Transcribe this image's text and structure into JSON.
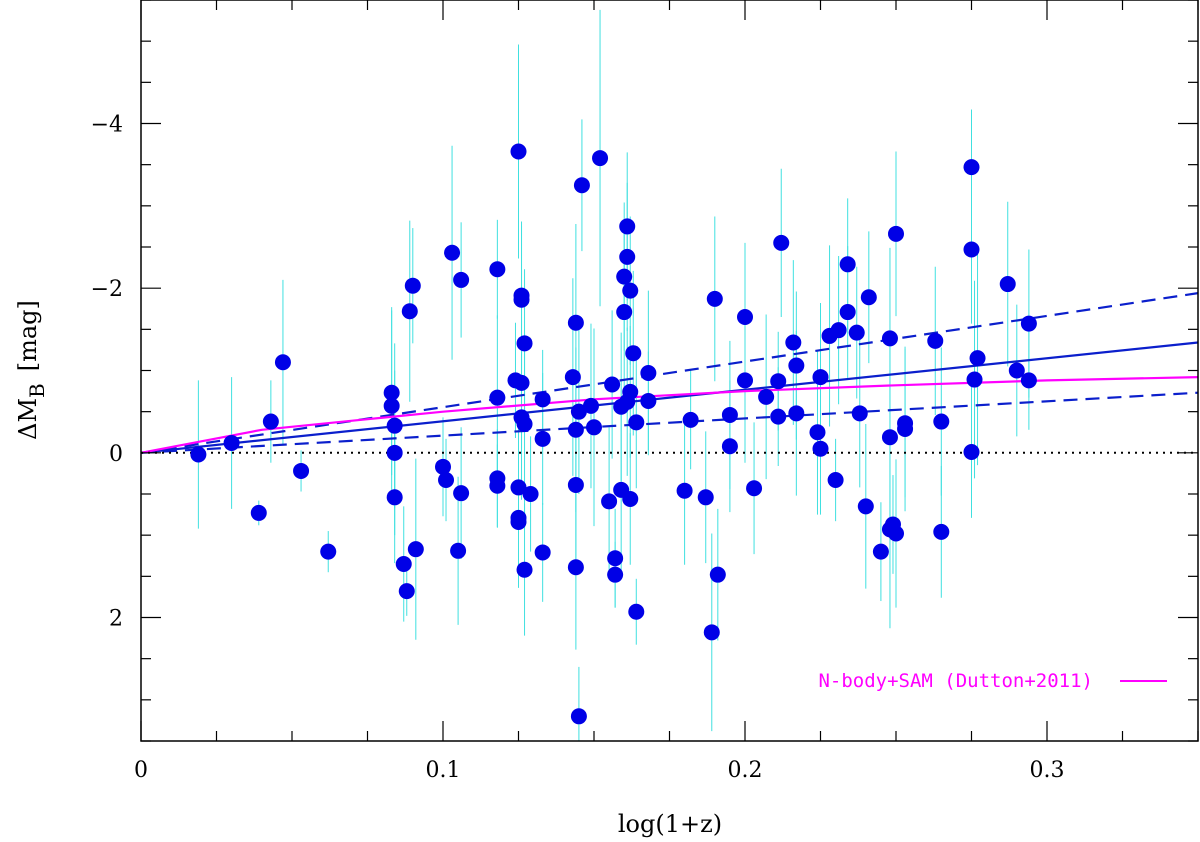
{
  "chart_data": {
    "type": "scatter",
    "title": "",
    "xlabel": "log(1+z)",
    "ylabel": {
      "main": "ΔM",
      "sub": "B",
      "unit": "[mag]"
    },
    "xlim": [
      0,
      0.35
    ],
    "ylim": [
      3.5,
      -5.5
    ],
    "x_ticks": [
      {
        "value": 0,
        "label": "0"
      },
      {
        "value": 0.1,
        "label": "0.1"
      },
      {
        "value": 0.2,
        "label": "0.2"
      },
      {
        "value": 0.3,
        "label": "0.3"
      }
    ],
    "x_minor_step": 0.025,
    "y_ticks": [
      {
        "value": -4,
        "label": "−4"
      },
      {
        "value": -2,
        "label": "−2"
      },
      {
        "value": 0,
        "label": "0"
      },
      {
        "value": 2,
        "label": "2"
      }
    ],
    "y_minor_step": 0.5,
    "colors": {
      "points": "#0000e6",
      "errorbars": "#40e0e0",
      "fit": "#0b1fcc",
      "model": "#ff00ff",
      "zero": "#000000"
    },
    "points": [
      {
        "x": 0.019,
        "y": 0.02,
        "err": 0.9
      },
      {
        "x": 0.03,
        "y": -0.12,
        "err": 0.8
      },
      {
        "x": 0.039,
        "y": 0.73,
        "err": 0.15
      },
      {
        "x": 0.043,
        "y": -0.38,
        "err": 0.5
      },
      {
        "x": 0.047,
        "y": -1.1,
        "err": 1.0
      },
      {
        "x": 0.053,
        "y": 0.22,
        "err": 0.25
      },
      {
        "x": 0.062,
        "y": 1.2,
        "err": 0.25
      },
      {
        "x": 0.083,
        "y": -0.57,
        "err": 1.2
      },
      {
        "x": 0.083,
        "y": -0.73,
        "err": 1.0
      },
      {
        "x": 0.084,
        "y": -0.33,
        "err": 1.0
      },
      {
        "x": 0.084,
        "y": 0.0,
        "err": 1.0
      },
      {
        "x": 0.084,
        "y": 0.54,
        "err": 0.8
      },
      {
        "x": 0.087,
        "y": 1.35,
        "err": 0.7
      },
      {
        "x": 0.088,
        "y": 1.68,
        "err": 0.3
      },
      {
        "x": 0.089,
        "y": -1.72,
        "err": 1.1
      },
      {
        "x": 0.09,
        "y": -2.03,
        "err": 0.7
      },
      {
        "x": 0.091,
        "y": 1.17,
        "err": 1.1
      },
      {
        "x": 0.1,
        "y": 0.17,
        "err": 0.6
      },
      {
        "x": 0.101,
        "y": 0.33,
        "err": 0.5
      },
      {
        "x": 0.103,
        "y": -2.43,
        "err": 1.3
      },
      {
        "x": 0.105,
        "y": 1.19,
        "err": 0.9
      },
      {
        "x": 0.106,
        "y": -2.1,
        "err": 0.7
      },
      {
        "x": 0.106,
        "y": 0.49,
        "err": 0.8
      },
      {
        "x": 0.118,
        "y": -2.23,
        "err": 0.6
      },
      {
        "x": 0.118,
        "y": -0.67,
        "err": 1.0
      },
      {
        "x": 0.118,
        "y": 0.31,
        "err": 0.6
      },
      {
        "x": 0.118,
        "y": 0.4,
        "err": 0.5
      },
      {
        "x": 0.124,
        "y": -0.88,
        "err": 0.7
      },
      {
        "x": 0.125,
        "y": -3.66,
        "err": 1.3
      },
      {
        "x": 0.125,
        "y": 0.42,
        "err": 0.8
      },
      {
        "x": 0.125,
        "y": 0.79,
        "err": 0.8
      },
      {
        "x": 0.125,
        "y": 0.84,
        "err": 0.8
      },
      {
        "x": 0.126,
        "y": -1.91,
        "err": 0.9
      },
      {
        "x": 0.126,
        "y": -1.86,
        "err": 0.9
      },
      {
        "x": 0.126,
        "y": -0.85,
        "err": 0.8
      },
      {
        "x": 0.126,
        "y": -0.43,
        "err": 1.0
      },
      {
        "x": 0.127,
        "y": -1.33,
        "err": 0.9
      },
      {
        "x": 0.127,
        "y": -0.35,
        "err": 1.1
      },
      {
        "x": 0.127,
        "y": 1.42,
        "err": 0.8
      },
      {
        "x": 0.129,
        "y": 0.5,
        "err": 0.7
      },
      {
        "x": 0.133,
        "y": -0.65,
        "err": 0.6
      },
      {
        "x": 0.133,
        "y": -0.17,
        "err": 0.8
      },
      {
        "x": 0.133,
        "y": 1.21,
        "err": 0.6
      },
      {
        "x": 0.143,
        "y": -0.92,
        "err": 1.2
      },
      {
        "x": 0.144,
        "y": -1.58,
        "err": 1.2
      },
      {
        "x": 0.144,
        "y": -0.28,
        "err": 1.0
      },
      {
        "x": 0.144,
        "y": 0.39,
        "err": 0.9
      },
      {
        "x": 0.144,
        "y": 1.39,
        "err": 1.0
      },
      {
        "x": 0.145,
        "y": -0.5,
        "err": 1.0
      },
      {
        "x": 0.145,
        "y": 3.2,
        "err": 0.6
      },
      {
        "x": 0.146,
        "y": -3.25,
        "err": 0.8
      },
      {
        "x": 0.149,
        "y": -0.57,
        "err": 1.0
      },
      {
        "x": 0.15,
        "y": -0.31,
        "err": 1.2
      },
      {
        "x": 0.152,
        "y": -3.58,
        "err": 1.8
      },
      {
        "x": 0.155,
        "y": 0.59,
        "err": 0.9
      },
      {
        "x": 0.156,
        "y": -0.83,
        "err": 0.9
      },
      {
        "x": 0.157,
        "y": 1.28,
        "err": 0.6
      },
      {
        "x": 0.157,
        "y": 1.48,
        "err": 0.4
      },
      {
        "x": 0.159,
        "y": -0.56,
        "err": 0.9
      },
      {
        "x": 0.159,
        "y": 0.45,
        "err": 1.0
      },
      {
        "x": 0.16,
        "y": -2.14,
        "err": 0.9
      },
      {
        "x": 0.16,
        "y": -1.71,
        "err": 1.0
      },
      {
        "x": 0.161,
        "y": -2.38,
        "err": 0.9
      },
      {
        "x": 0.161,
        "y": -2.75,
        "err": 0.9
      },
      {
        "x": 0.161,
        "y": -0.62,
        "err": 0.9
      },
      {
        "x": 0.162,
        "y": -1.97,
        "err": 0.9
      },
      {
        "x": 0.162,
        "y": -0.74,
        "err": 0.8
      },
      {
        "x": 0.162,
        "y": 0.56,
        "err": 0.8
      },
      {
        "x": 0.163,
        "y": -1.21,
        "err": 1.0
      },
      {
        "x": 0.164,
        "y": -0.37,
        "err": 0.8
      },
      {
        "x": 0.164,
        "y": 1.93,
        "err": 0.4
      },
      {
        "x": 0.168,
        "y": -0.63,
        "err": 0.6
      },
      {
        "x": 0.168,
        "y": -0.97,
        "err": 1.0
      },
      {
        "x": 0.18,
        "y": 0.46,
        "err": 0.9
      },
      {
        "x": 0.182,
        "y": -0.4,
        "err": 0.6
      },
      {
        "x": 0.187,
        "y": 0.54,
        "err": 0.8
      },
      {
        "x": 0.189,
        "y": 2.18,
        "err": 1.2
      },
      {
        "x": 0.19,
        "y": -1.87,
        "err": 1.0
      },
      {
        "x": 0.191,
        "y": 1.48,
        "err": 0.8
      },
      {
        "x": 0.195,
        "y": -0.46,
        "err": 0.9
      },
      {
        "x": 0.195,
        "y": -0.08,
        "err": 0.8
      },
      {
        "x": 0.2,
        "y": -0.88,
        "err": 1.0
      },
      {
        "x": 0.2,
        "y": -1.65,
        "err": 0.9
      },
      {
        "x": 0.203,
        "y": 0.43,
        "err": 0.8
      },
      {
        "x": 0.207,
        "y": -0.68,
        "err": 1.0
      },
      {
        "x": 0.211,
        "y": -0.44,
        "err": 0.6
      },
      {
        "x": 0.211,
        "y": -0.87,
        "err": 0.6
      },
      {
        "x": 0.212,
        "y": -2.55,
        "err": 0.9
      },
      {
        "x": 0.216,
        "y": -1.34,
        "err": 1.0
      },
      {
        "x": 0.217,
        "y": -1.06,
        "err": 0.9
      },
      {
        "x": 0.217,
        "y": -0.48,
        "err": 1.0
      },
      {
        "x": 0.224,
        "y": -0.25,
        "err": 1.0
      },
      {
        "x": 0.225,
        "y": -0.92,
        "err": 0.9
      },
      {
        "x": 0.225,
        "y": -0.05,
        "err": 0.8
      },
      {
        "x": 0.228,
        "y": -1.42,
        "err": 1.1
      },
      {
        "x": 0.23,
        "y": 0.33,
        "err": 0.5
      },
      {
        "x": 0.231,
        "y": -1.49,
        "err": 0.9
      },
      {
        "x": 0.234,
        "y": -2.29,
        "err": 0.8
      },
      {
        "x": 0.234,
        "y": -1.71,
        "err": 0.8
      },
      {
        "x": 0.237,
        "y": -1.46,
        "err": 0.8
      },
      {
        "x": 0.238,
        "y": -0.48,
        "err": 0.9
      },
      {
        "x": 0.24,
        "y": 0.65,
        "err": 1.0
      },
      {
        "x": 0.241,
        "y": -1.89,
        "err": 0.8
      },
      {
        "x": 0.245,
        "y": 1.2,
        "err": 0.6
      },
      {
        "x": 0.248,
        "y": -1.39,
        "err": 1.1
      },
      {
        "x": 0.248,
        "y": -0.19,
        "err": 1.2
      },
      {
        "x": 0.248,
        "y": 0.93,
        "err": 1.2
      },
      {
        "x": 0.249,
        "y": 0.87,
        "err": 0.6
      },
      {
        "x": 0.25,
        "y": -2.66,
        "err": 1.0
      },
      {
        "x": 0.25,
        "y": 0.98,
        "err": 0.9
      },
      {
        "x": 0.253,
        "y": -0.29,
        "err": 1.0
      },
      {
        "x": 0.253,
        "y": -0.36,
        "err": 0.9
      },
      {
        "x": 0.263,
        "y": -1.36,
        "err": 0.9
      },
      {
        "x": 0.265,
        "y": -0.38,
        "err": 0.9
      },
      {
        "x": 0.265,
        "y": 0.96,
        "err": 0.8
      },
      {
        "x": 0.275,
        "y": -3.47,
        "err": 0.7
      },
      {
        "x": 0.275,
        "y": -2.47,
        "err": 0.9
      },
      {
        "x": 0.275,
        "y": -0.01,
        "err": 0.8
      },
      {
        "x": 0.276,
        "y": -0.89,
        "err": 1.2
      },
      {
        "x": 0.277,
        "y": -1.15,
        "err": 1.3
      },
      {
        "x": 0.287,
        "y": -2.05,
        "err": 1.0
      },
      {
        "x": 0.29,
        "y": -1.0,
        "err": 0.8
      },
      {
        "x": 0.294,
        "y": -1.57,
        "err": 0.9
      },
      {
        "x": 0.294,
        "y": -0.88,
        "err": 0.6
      }
    ],
    "lines": [
      {
        "name": "fit",
        "style": "solid",
        "color": "#0b1fcc",
        "x": [
          0,
          0.35
        ],
        "y": [
          0,
          -1.34
        ]
      },
      {
        "name": "fit-upper",
        "style": "dashed",
        "color": "#0b1fcc",
        "x": [
          0,
          0.35
        ],
        "y": [
          0,
          -1.94
        ]
      },
      {
        "name": "fit-lower",
        "style": "dashed",
        "color": "#0b1fcc",
        "x": [
          0,
          0.35
        ],
        "y": [
          0,
          -0.73
        ]
      },
      {
        "name": "N-body+SAM (Dutton+2011)",
        "style": "solid",
        "color": "#ff00ff",
        "x": [
          0,
          0.02,
          0.04,
          0.07,
          0.1,
          0.15,
          0.2,
          0.25,
          0.3,
          0.35
        ],
        "y": [
          0,
          -0.14,
          -0.28,
          -0.39,
          -0.5,
          -0.65,
          -0.75,
          -0.82,
          -0.88,
          -0.92
        ]
      },
      {
        "name": "zero",
        "style": "dotted",
        "color": "#000000",
        "x": [
          0,
          0.35
        ],
        "y": [
          0,
          0
        ]
      }
    ],
    "legend": {
      "label": "N-body+SAM (Dutton+2011)",
      "placement": "bottom-right",
      "color": "#ff00ff"
    }
  }
}
